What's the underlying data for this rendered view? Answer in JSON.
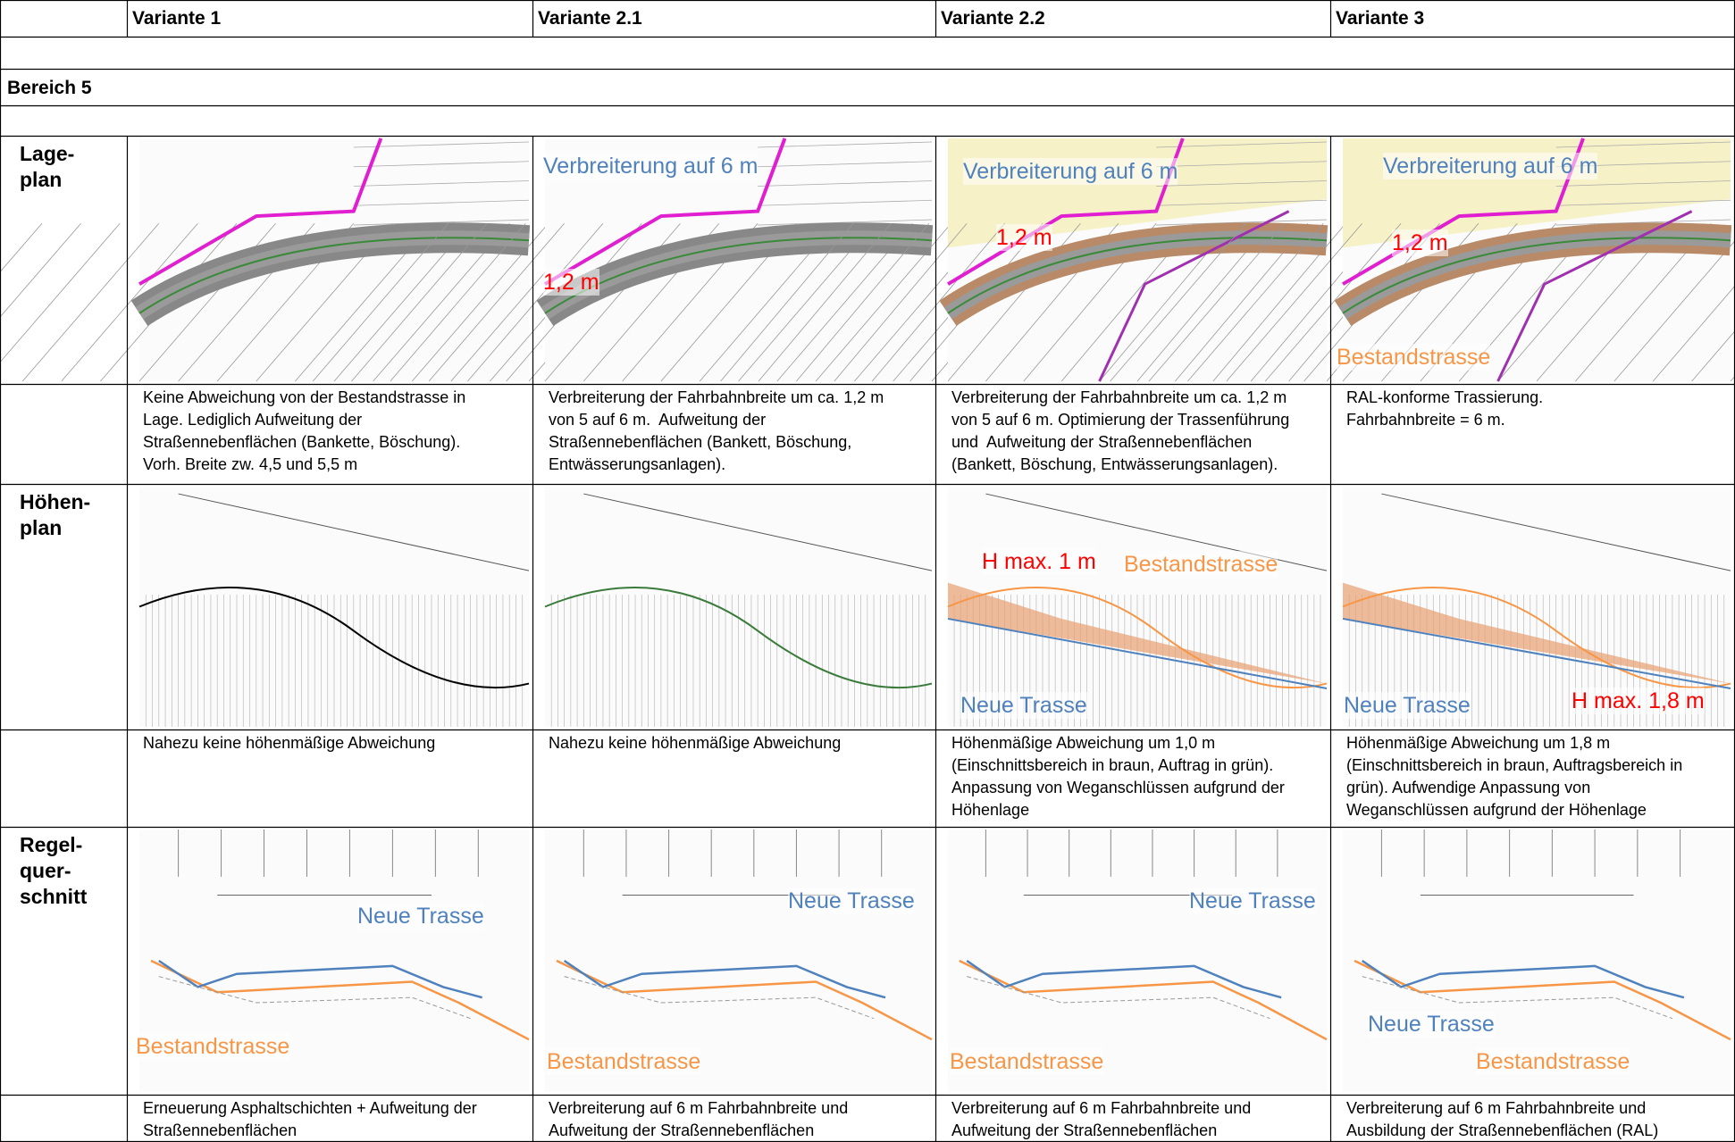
{
  "header": {
    "columns": [
      "Variante 1",
      "Variante 2.1",
      "Variante 2.2",
      "Variante 3"
    ]
  },
  "section": "Bereich 5",
  "rows": [
    {
      "label_lines": [
        "Lage-",
        "plan"
      ],
      "images": [
        {
          "annotations": []
        },
        {
          "annotations": [
            {
              "text": "Verbreiterung auf 6 m",
              "color": "#4f81bd"
            },
            {
              "text": "1,2 m",
              "color": "#ff0000"
            }
          ]
        },
        {
          "annotations": [
            {
              "text": "Verbreiterung auf 6 m",
              "color": "#4f81bd"
            },
            {
              "text": "1,2 m",
              "color": "#ff0000"
            }
          ]
        },
        {
          "annotations": [
            {
              "text": "Verbreiterung auf 6 m",
              "color": "#4f81bd"
            },
            {
              "text": "1,2 m",
              "color": "#ff0000"
            },
            {
              "text": "Bestandstrasse",
              "color": "#f79646"
            }
          ]
        }
      ],
      "descriptions": [
        [
          "Keine Abweichung von der Bestandstrasse in",
          "Lage. Lediglich Aufweitung der",
          "Straßennebenflächen (Bankette, Böschung).",
          "Vorh. Breite zw. 4,5 und 5,5 m"
        ],
        [
          "Verbreiterung der Fahrbahnbreite um ca. 1,2 m",
          "von 5 auf 6 m.  Aufweitung der",
          "Straßennebenflächen (Bankett, Böschung,",
          "Entwässerungsanlagen)."
        ],
        [
          "Verbreiterung der Fahrbahnbreite um ca. 1,2 m",
          "von 5 auf 6 m. Optimierung der Trassenführung",
          "und  Aufweitung der Straßennebenflächen",
          "(Bankett, Böschung, Entwässerungsanlagen)."
        ],
        [
          "RAL-konforme Trassierung.",
          "Fahrbahnbreite = 6 m."
        ]
      ]
    },
    {
      "label_lines": [
        "Höhen-",
        "plan"
      ],
      "images": [
        {
          "annotations": []
        },
        {
          "annotations": []
        },
        {
          "annotations": [
            {
              "text": "H max. 1 m",
              "color": "#ff0000"
            },
            {
              "text": "Bestandstrasse",
              "color": "#f79646"
            },
            {
              "text": "Neue Trasse",
              "color": "#4f81bd"
            }
          ]
        },
        {
          "annotations": [
            {
              "text": "Neue Trasse",
              "color": "#4f81bd"
            },
            {
              "text": "H max. 1,8 m",
              "color": "#ff0000"
            }
          ]
        }
      ],
      "descriptions": [
        [
          "Nahezu keine höhenmäßige Abweichung"
        ],
        [
          "Nahezu keine höhenmäßige Abweichung"
        ],
        [
          "Höhenmäßige Abweichung um 1,0 m",
          "(Einschnittsbereich in braun, Auftrag in grün).",
          "Anpassung von Weganschlüssen aufgrund der",
          "Höhenlage"
        ],
        [
          "Höhenmäßige Abweichung um 1,8 m",
          "(Einschnittsbereich in braun, Auftragsbereich in",
          "grün). Aufwendige Anpassung von",
          "Weganschlüssen aufgrund der Höhenlage"
        ]
      ]
    },
    {
      "label_lines": [
        "Regel-",
        "quer-",
        "schnitt"
      ],
      "images": [
        {
          "annotations": [
            {
              "text": "Neue Trasse",
              "color": "#4f81bd"
            },
            {
              "text": "Bestandstrasse",
              "color": "#f79646"
            }
          ]
        },
        {
          "annotations": [
            {
              "text": "Neue Trasse",
              "color": "#4f81bd"
            },
            {
              "text": "Bestandstrasse",
              "color": "#f79646"
            }
          ]
        },
        {
          "annotations": [
            {
              "text": "Neue Trasse",
              "color": "#4f81bd"
            },
            {
              "text": "Bestandstrasse",
              "color": "#f79646"
            }
          ]
        },
        {
          "annotations": [
            {
              "text": "Neue Trasse",
              "color": "#4f81bd"
            },
            {
              "text": "Bestandstrasse",
              "color": "#f79646"
            }
          ]
        }
      ],
      "descriptions": [
        [
          "Erneuerung Asphaltschichten + Aufweitung der",
          "Straßennebenflächen"
        ],
        [
          "Verbreiterung auf 6 m Fahrbahnbreite und",
          "Aufweitung der Straßennebenflächen"
        ],
        [
          "Verbreiterung auf 6 m Fahrbahnbreite und",
          "Aufweitung der Straßennebenflächen"
        ],
        [
          "Verbreiterung auf 6 m Fahrbahnbreite und",
          "Ausbildung der Straßennebenflächen (RAL)"
        ]
      ]
    }
  ]
}
